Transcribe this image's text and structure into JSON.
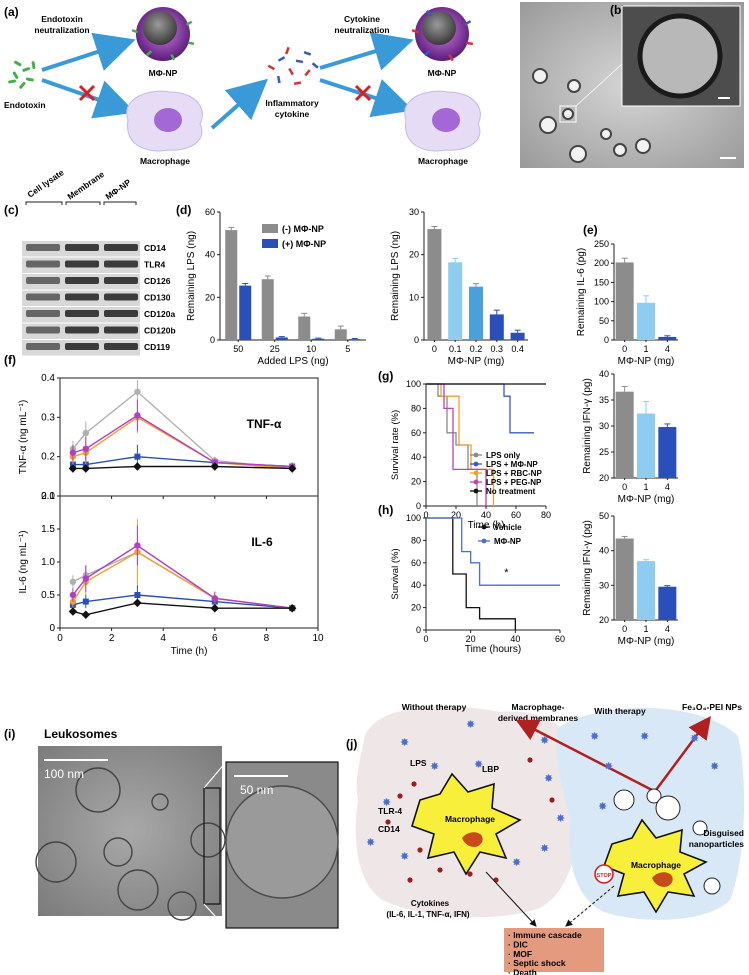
{
  "panels": {
    "a": {
      "label": "(a)",
      "endotoxin_neutralization": "Endotoxin neutralization",
      "cytokine_neutralization": "Cytokine neutralization",
      "endotoxin": "Endotoxin",
      "mphi_np": "MΦ-NP",
      "macrophage": "Macrophage",
      "inflammatory_cytokine": "Inflammatory cytokine"
    },
    "b": {
      "label": "(b)"
    },
    "c": {
      "label": "(c)",
      "columns": [
        "Cell lysate",
        "Membrane",
        "MΦ-NP"
      ],
      "rows": [
        "CD14",
        "TLR4",
        "CD126",
        "CD130",
        "CD120a",
        "CD120b",
        "CD119"
      ]
    },
    "d": {
      "label": "(d)"
    },
    "e": {
      "label": "(e)"
    },
    "f": {
      "label": "(f)"
    },
    "g": {
      "label": "(g)"
    },
    "h": {
      "label": "(h)"
    },
    "i": {
      "label": "(i)",
      "title": "Leukosomes",
      "scale1": "100 nm",
      "scale2": "50 nm"
    },
    "j": {
      "label": "(j)",
      "without_therapy": "Without therapy",
      "with_therapy": "With therapy",
      "macrophage_membranes": "Macrophage-derived membranes",
      "fe3o4": "Fe₃O₄-PEI NPs",
      "lps": "LPS",
      "lbp": "LBP",
      "tlr4": "TLR-4",
      "cd14": "CD14",
      "macrophage_left": "Macrophage",
      "macrophage_right": "Macrophage",
      "cytokines": "Cytokines",
      "cytokines_list": "(IL-6, IL-1, TNF-α, IFN)",
      "disguised": "Disguised nanoparticles",
      "stop": "STOP",
      "outcomes": [
        "· Immune cascade",
        "· DIC",
        "· MOF",
        "· Septic shock",
        "· Death"
      ]
    }
  },
  "colors": {
    "gray": "#8c8c8c",
    "blue": "#2a4fb8",
    "light_blue": "#8ecdf0",
    "mid_blue": "#4aa0dc",
    "dark_blue": "#2a4fb8",
    "violet": "#7a3ea0",
    "outcome_box": "#e39a7f",
    "left_bg": "#efe6e8",
    "right_bg": "#d9e8f7"
  },
  "chart_data": [
    {
      "id": "d1",
      "type": "bar",
      "categories": [
        "50",
        "25",
        "10",
        "5"
      ],
      "series": [
        {
          "name": "(-) MΦ-NP",
          "values": [
            51.5,
            28.5,
            11,
            5
          ],
          "errors": [
            1.3,
            1.5,
            1.5,
            1.5
          ]
        },
        {
          "name": "(+) MΦ-NP",
          "values": [
            25.5,
            1.2,
            0.6,
            0.4
          ],
          "errors": [
            1.0,
            0.4,
            0.3,
            0.3
          ]
        }
      ],
      "xlabel": "Added LPS (ng)",
      "ylabel": "Remaining LPS (ng)",
      "ylim": [
        0,
        60
      ],
      "yticks": [
        "0",
        "20",
        "40",
        "60"
      ]
    },
    {
      "id": "d2",
      "type": "bar",
      "categories": [
        "0",
        "0.1",
        "0.2",
        "0.3",
        "0.4"
      ],
      "values": [
        26,
        18.2,
        12.5,
        6,
        1.7
      ],
      "errors": [
        0.6,
        0.9,
        0.7,
        1.0,
        0.6
      ],
      "xlabel": "MΦ-NP (mg)",
      "ylabel": "Remaining LPS (ng)",
      "ylim": [
        0,
        30
      ],
      "yticks": [
        "0",
        "10",
        "20",
        "30"
      ]
    },
    {
      "id": "e1",
      "type": "bar",
      "categories": [
        "0",
        "1",
        "4"
      ],
      "values": [
        202,
        97,
        8
      ],
      "errors": [
        11,
        18,
        3
      ],
      "xlabel": "MΦ-NP (mg)",
      "ylabel": "Remaining IL-6 (pg)",
      "ylim": [
        0,
        250
      ],
      "yticks": [
        "0",
        "50",
        "100",
        "150",
        "200",
        "250"
      ]
    },
    {
      "id": "e2",
      "type": "bar",
      "categories": [
        "0",
        "1",
        "4"
      ],
      "values": [
        36.6,
        32.4,
        29.8
      ],
      "errors": [
        1.0,
        2.3,
        0.6
      ],
      "xlabel": "MΦ-NP (mg)",
      "ylabel": "Remaining IFN-γ (pg)",
      "ylim": [
        20,
        40
      ],
      "yticks": [
        "20",
        "25",
        "30",
        "35",
        "40"
      ]
    },
    {
      "id": "e3",
      "type": "bar",
      "categories": [
        "0",
        "1",
        "4"
      ],
      "values": [
        43.5,
        37,
        29.6
      ],
      "errors": [
        0.6,
        0.4,
        0.3
      ],
      "xlabel": "MΦ-NP (mg)",
      "ylabel": "Remaining IFN-γ (pg)",
      "ylim": [
        20,
        50
      ],
      "yticks": [
        "20",
        "30",
        "40",
        "50"
      ]
    },
    {
      "id": "f1",
      "type": "line",
      "title": "TNF-α",
      "x": [
        0.5,
        1,
        3,
        6,
        9
      ],
      "series": [
        {
          "name": "LPS only",
          "values": [
            0.22,
            0.26,
            0.365,
            0.19,
            0.17
          ],
          "errors": [
            0.02,
            0.03,
            0.03,
            0.01,
            0.01
          ]
        },
        {
          "name": "LPS + MΦ-NP",
          "values": [
            0.18,
            0.18,
            0.2,
            0.185,
            0.175
          ],
          "errors": [
            0.02,
            0.02,
            0.03,
            0.01,
            0.01
          ]
        },
        {
          "name": "LPS + RBC-NP",
          "values": [
            0.2,
            0.21,
            0.3,
            0.185,
            0.17
          ],
          "errors": [
            0.02,
            0.03,
            0.04,
            0.01,
            0.01
          ]
        },
        {
          "name": "LPS + PEG-NP",
          "values": [
            0.21,
            0.22,
            0.305,
            0.185,
            0.175
          ],
          "errors": [
            0.02,
            0.03,
            0.04,
            0.01,
            0.01
          ]
        },
        {
          "name": "No treatment",
          "values": [
            0.17,
            0.17,
            0.175,
            0.175,
            0.17
          ],
          "errors": [
            0.01,
            0.01,
            0.01,
            0.01,
            0.01
          ]
        }
      ],
      "xlabel": "",
      "ylabel": "TNF-α (ng mL⁻¹)",
      "xlim": [
        0,
        10
      ],
      "ylim": [
        0.1,
        0.4
      ],
      "yticks": [
        "0.1",
        "0.2",
        "0.3",
        "0.4"
      ]
    },
    {
      "id": "f2",
      "type": "line",
      "title": "IL-6",
      "x": [
        0.5,
        1,
        3,
        6,
        9
      ],
      "series": [
        {
          "name": "LPS only",
          "values": [
            0.7,
            0.8,
            1.15,
            0.45,
            0.3
          ],
          "errors": [
            0.1,
            0.15,
            0.2,
            0.05,
            0.05
          ]
        },
        {
          "name": "LPS + MΦ-NP",
          "values": [
            0.35,
            0.4,
            0.5,
            0.4,
            0.3
          ],
          "errors": [
            0.1,
            0.1,
            0.15,
            0.05,
            0.05
          ]
        },
        {
          "name": "LPS + RBC-NP",
          "values": [
            0.4,
            0.7,
            1.15,
            0.45,
            0.3
          ],
          "errors": [
            0.1,
            0.2,
            0.5,
            0.1,
            0.05
          ]
        },
        {
          "name": "LPS + PEG-NP",
          "values": [
            0.5,
            0.75,
            1.25,
            0.45,
            0.3
          ],
          "errors": [
            0.1,
            0.2,
            0.3,
            0.1,
            0.05
          ]
        },
        {
          "name": "No treatment",
          "values": [
            0.25,
            0.2,
            0.38,
            0.3,
            0.3
          ],
          "errors": [
            0.05,
            0.05,
            0.05,
            0.05,
            0.05
          ]
        }
      ],
      "xlabel": "Time (h)",
      "ylabel": "IL-6 (ng mL⁻¹)",
      "xlim": [
        0,
        10
      ],
      "ylim": [
        0,
        2.0
      ],
      "xticks": [
        "0",
        "2",
        "4",
        "6",
        "8",
        "10"
      ],
      "yticks": [
        "0",
        "0.5",
        "1.0",
        "1.5",
        "2.0"
      ]
    },
    {
      "id": "g",
      "type": "line",
      "series": [
        {
          "name": "LPS only",
          "steps": [
            [
              0,
              100
            ],
            [
              8,
              90
            ],
            [
              14,
              60
            ],
            [
              20,
              50
            ],
            [
              28,
              30
            ],
            [
              34,
              0
            ]
          ]
        },
        {
          "name": "LPS + MΦ-NP",
          "steps": [
            [
              0,
              100
            ],
            [
              48,
              100
            ],
            [
              52,
              90
            ],
            [
              56,
              60
            ],
            [
              72,
              60
            ]
          ]
        },
        {
          "name": "LPS + RBC-NP",
          "steps": [
            [
              0,
              100
            ],
            [
              10,
              90
            ],
            [
              22,
              50
            ],
            [
              30,
              30
            ],
            [
              45,
              0
            ]
          ]
        },
        {
          "name": "LPS + PEG-NP",
          "steps": [
            [
              0,
              100
            ],
            [
              12,
              80
            ],
            [
              18,
              30
            ],
            [
              40,
              0
            ]
          ]
        },
        {
          "name": "No treatment",
          "steps": [
            [
              0,
              100
            ],
            [
              80,
              100
            ]
          ]
        }
      ],
      "xlabel": "Time (h)",
      "ylabel": "Survival rate (%)",
      "xlim": [
        0,
        80
      ],
      "ylim": [
        0,
        100
      ],
      "xticks": [
        "0",
        "20",
        "40",
        "60",
        "80"
      ],
      "yticks": [
        "0",
        "20",
        "40",
        "60",
        "80",
        "100"
      ]
    },
    {
      "id": "h",
      "type": "line",
      "series": [
        {
          "name": "Vehicle",
          "steps": [
            [
              0,
              100
            ],
            [
              12,
              50
            ],
            [
              18,
              20
            ],
            [
              24,
              10
            ],
            [
              40,
              0
            ]
          ]
        },
        {
          "name": "MΦ-NP",
          "steps": [
            [
              0,
              100
            ],
            [
              14,
              100
            ],
            [
              16,
              70
            ],
            [
              20,
              60
            ],
            [
              24,
              40
            ],
            [
              60,
              40
            ]
          ]
        }
      ],
      "annotation": "*",
      "xlabel": "Time (hours)",
      "ylabel": "Survival (%)",
      "xlim": [
        0,
        60
      ],
      "ylim": [
        0,
        100
      ],
      "xticks": [
        "0",
        "20",
        "40",
        "60"
      ],
      "yticks": [
        "0",
        "20",
        "40",
        "60",
        "80",
        "100"
      ]
    }
  ]
}
